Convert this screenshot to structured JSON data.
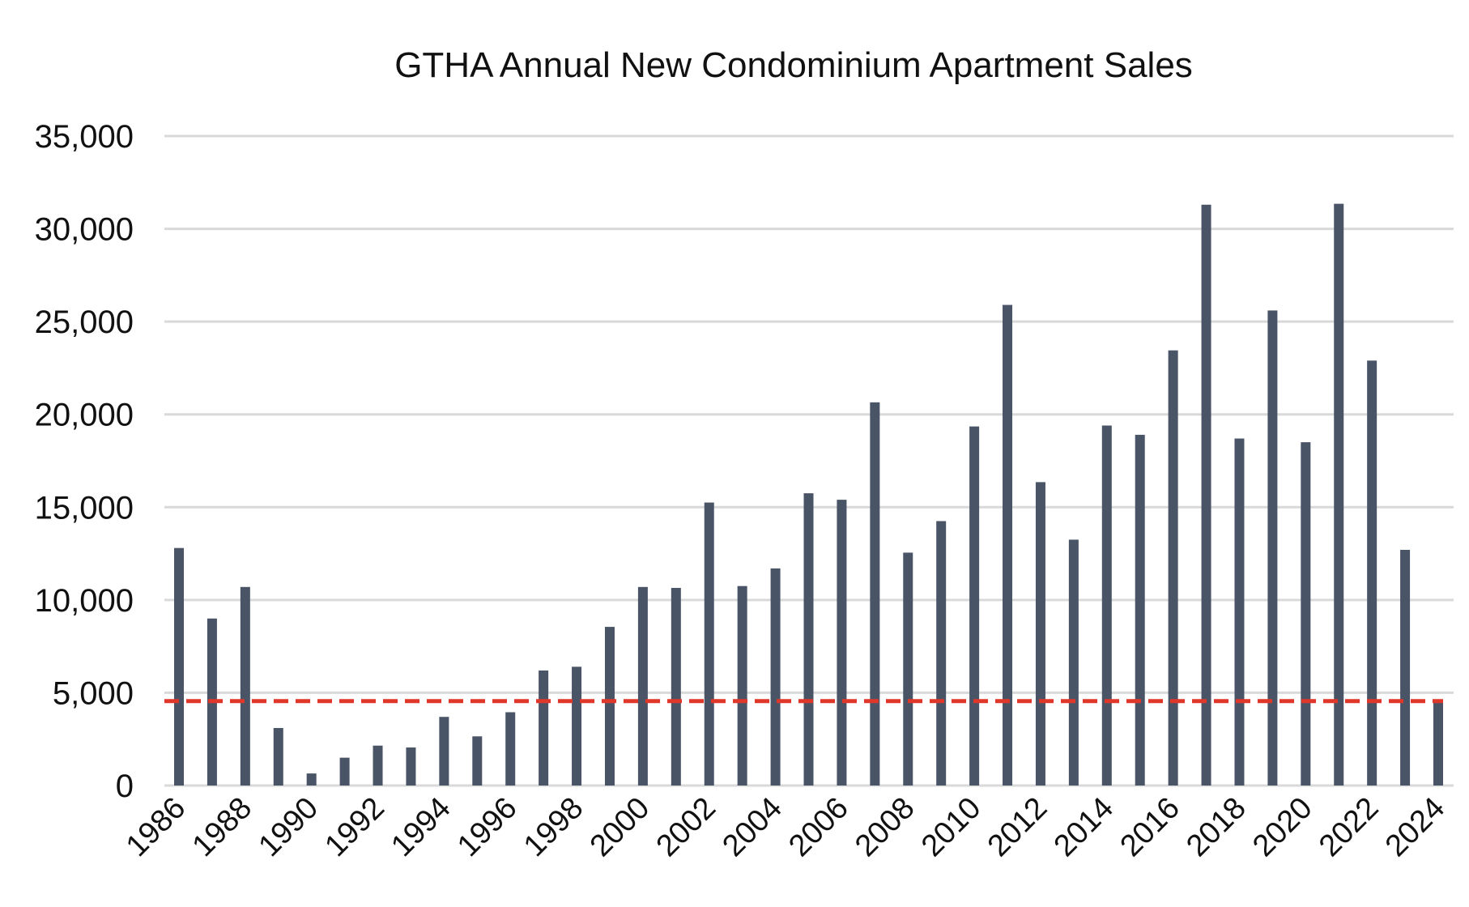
{
  "chart_data": {
    "type": "bar",
    "title": "GTHA Annual New Condominium Apartment Sales",
    "xlabel": "",
    "ylabel": "",
    "ylim": [
      0,
      35000
    ],
    "yticks": [
      0,
      5000,
      10000,
      15000,
      20000,
      25000,
      30000,
      35000
    ],
    "ytick_labels": [
      "0",
      "5,000",
      "10,000",
      "15,000",
      "20,000",
      "25,000",
      "30,000",
      "35,000"
    ],
    "grid": true,
    "legend": "none",
    "xtick_labels": [
      "1986",
      "1988",
      "1990",
      "1992",
      "1994",
      "1996",
      "1998",
      "2000",
      "2002",
      "2004",
      "2006",
      "2008",
      "2010",
      "2012",
      "2014",
      "2016",
      "2018",
      "2020",
      "2022",
      "2024"
    ],
    "categories": [
      "1986",
      "1987",
      "1988",
      "1989",
      "1990",
      "1991",
      "1992",
      "1993",
      "1994",
      "1995",
      "1996",
      "1997",
      "1998",
      "1999",
      "2000",
      "2001",
      "2002",
      "2003",
      "2004",
      "2005",
      "2006",
      "2007",
      "2008",
      "2009",
      "2010",
      "2011",
      "2012",
      "2013",
      "2014",
      "2015",
      "2016",
      "2017",
      "2018",
      "2019",
      "2020",
      "2021",
      "2022",
      "2023",
      "2024"
    ],
    "values": [
      12800,
      9000,
      10700,
      3100,
      650,
      1500,
      2150,
      2050,
      3700,
      2650,
      3950,
      6200,
      6400,
      8550,
      10700,
      10650,
      15250,
      10750,
      11700,
      15750,
      15400,
      20650,
      12550,
      14250,
      19350,
      25900,
      16350,
      13250,
      19400,
      18900,
      23450,
      31300,
      18700,
      25600,
      18500,
      31350,
      22900,
      12700,
      4550
    ],
    "reference_line": {
      "value": 4550,
      "style": "dashed"
    },
    "colors": {
      "bar": "#4a5467",
      "reference_line": "#e0372b",
      "grid": "#d9d9d9",
      "text": "#111111"
    }
  }
}
